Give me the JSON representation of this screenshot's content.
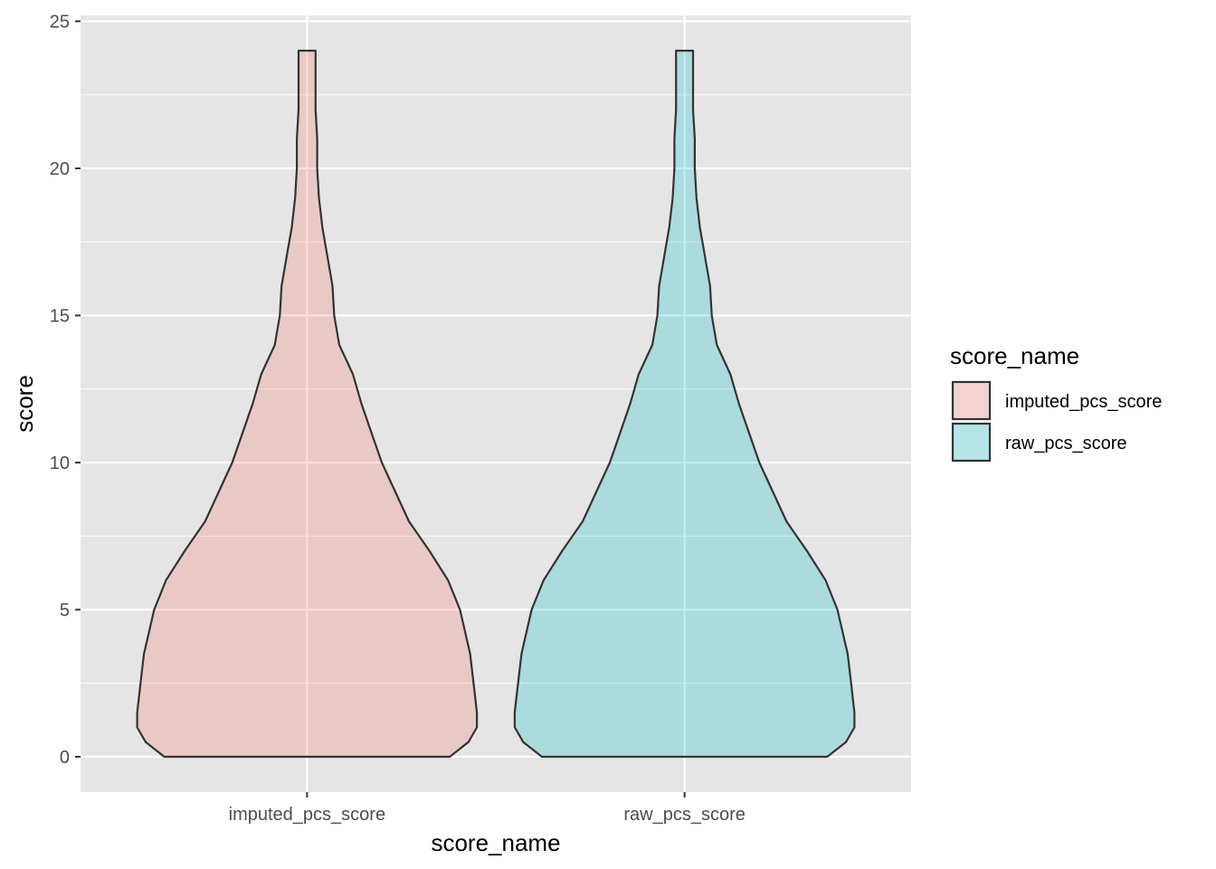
{
  "chart_data": {
    "type": "violin",
    "xlabel": "score_name",
    "ylabel": "score",
    "ylim": [
      -1.2,
      25.2
    ],
    "y_ticks": [
      0,
      5,
      10,
      15,
      20,
      25
    ],
    "y_tick_labels": [
      "0",
      "5",
      "10",
      "15",
      "20",
      "25"
    ],
    "categories": [
      "imputed_pcs_score",
      "raw_pcs_score"
    ],
    "grid": true,
    "legend": {
      "title": "score_name",
      "position": "right",
      "entries": [
        "imputed_pcs_score",
        "raw_pcs_score"
      ]
    },
    "series": [
      {
        "name": "imputed_pcs_score",
        "color": "#F8766D",
        "range": [
          0,
          24
        ],
        "density_profile": [
          [
            0,
            0.84
          ],
          [
            0.5,
            0.95
          ],
          [
            1,
            1.0
          ],
          [
            1.5,
            1.0
          ],
          [
            2,
            0.99
          ],
          [
            2.5,
            0.98
          ],
          [
            3,
            0.97
          ],
          [
            3.5,
            0.96
          ],
          [
            4,
            0.94
          ],
          [
            5,
            0.9
          ],
          [
            6,
            0.83
          ],
          [
            7,
            0.72
          ],
          [
            8,
            0.6
          ],
          [
            9,
            0.52
          ],
          [
            10,
            0.44
          ],
          [
            11,
            0.38
          ],
          [
            12,
            0.32
          ],
          [
            13,
            0.27
          ],
          [
            14,
            0.19
          ],
          [
            15,
            0.16
          ],
          [
            16,
            0.15
          ],
          [
            17,
            0.12
          ],
          [
            18,
            0.09
          ],
          [
            19,
            0.07
          ],
          [
            20,
            0.06
          ],
          [
            21,
            0.06
          ],
          [
            22,
            0.05
          ],
          [
            23,
            0.05
          ],
          [
            24,
            0.05
          ]
        ]
      },
      {
        "name": "raw_pcs_score",
        "color": "#00BFC4",
        "range": [
          0,
          24
        ],
        "density_profile": [
          [
            0,
            0.84
          ],
          [
            0.5,
            0.95
          ],
          [
            1,
            1.0
          ],
          [
            1.5,
            1.0
          ],
          [
            2,
            0.99
          ],
          [
            2.5,
            0.98
          ],
          [
            3,
            0.97
          ],
          [
            3.5,
            0.96
          ],
          [
            4,
            0.94
          ],
          [
            5,
            0.9
          ],
          [
            6,
            0.83
          ],
          [
            7,
            0.72
          ],
          [
            8,
            0.6
          ],
          [
            9,
            0.52
          ],
          [
            10,
            0.44
          ],
          [
            11,
            0.38
          ],
          [
            12,
            0.32
          ],
          [
            13,
            0.27
          ],
          [
            14,
            0.19
          ],
          [
            15,
            0.16
          ],
          [
            16,
            0.15
          ],
          [
            17,
            0.12
          ],
          [
            18,
            0.09
          ],
          [
            19,
            0.07
          ],
          [
            20,
            0.06
          ],
          [
            21,
            0.06
          ],
          [
            22,
            0.05
          ],
          [
            23,
            0.05
          ],
          [
            24,
            0.05
          ]
        ]
      }
    ]
  },
  "colors": {
    "panel_background": "#E5E5E5",
    "grid_line": "#FFFFFF",
    "outline": "#333333"
  }
}
